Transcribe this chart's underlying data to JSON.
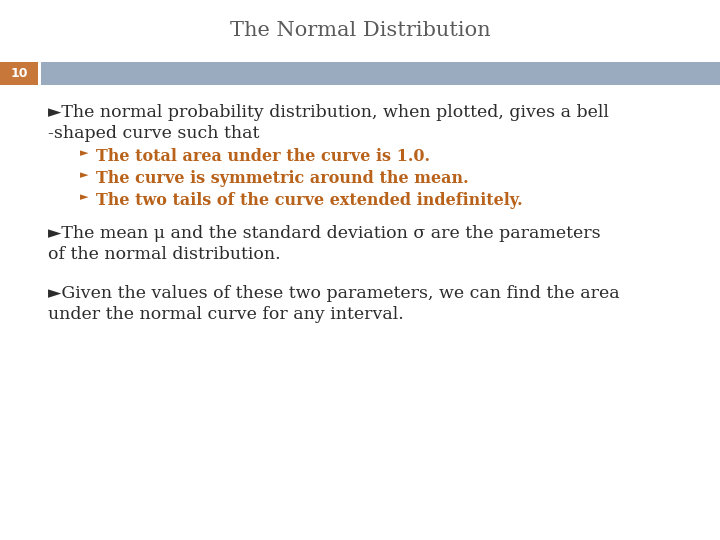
{
  "title": "The Normal Distribution",
  "title_color": "#5a5a5a",
  "title_fontsize": 15,
  "title_font": "serif",
  "slide_number": "10",
  "slide_number_bg": "#c8773a",
  "slide_number_text_color": "white",
  "header_bar_color": "#9aaabf",
  "bg_color": "#ffffff",
  "body_text_color": "#2c2c2c",
  "sub_bullet_color": "#b8621b",
  "bullet1_line1": "►The normal probability distribution, when plotted, gives a bell",
  "bullet1_line2": "-shaped curve such that",
  "sub_bullet1": "The total area under the curve is 1.0.",
  "sub_bullet2": "The curve is symmetric around the mean.",
  "sub_bullet3": "The two tails of the curve extended indefinitely.",
  "bullet2_line1": "►The mean μ and the standard deviation σ are the parameters",
  "bullet2_line2": "of the normal distribution.",
  "bullet3_line1": "►Given the values of these two parameters, we can find the area",
  "bullet3_line2": "under the normal curve for any interval.",
  "main_fontsize": 12.5,
  "sub_fontsize": 11.5
}
